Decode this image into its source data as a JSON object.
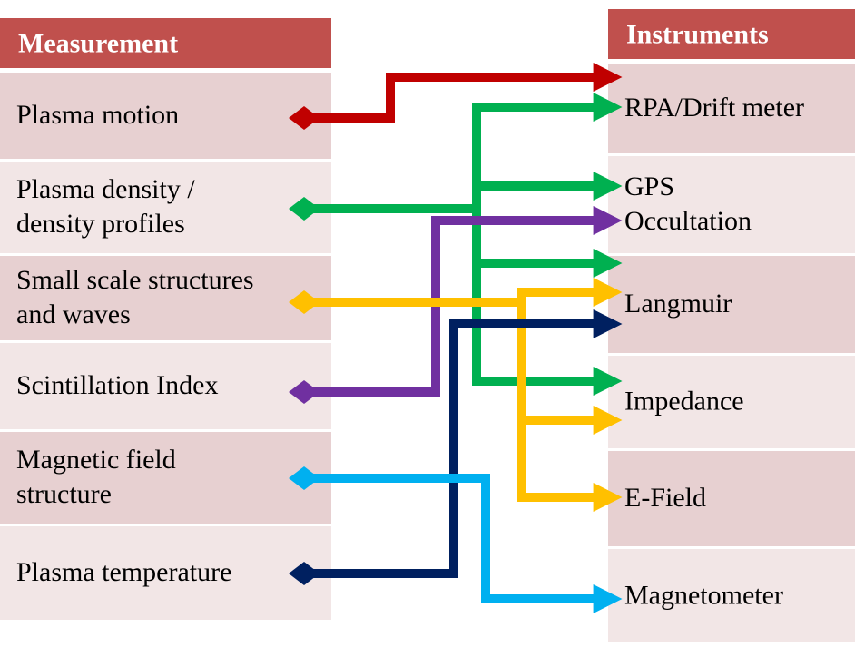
{
  "measurements": {
    "header": "Measurement",
    "rows": [
      [
        "Plasma motion"
      ],
      [
        "Plasma density /",
        "density profiles"
      ],
      [
        "Small scale structures",
        "and waves"
      ],
      [
        "Scintillation Index"
      ],
      [
        "Magnetic field",
        "structure"
      ],
      [
        "Plasma temperature"
      ]
    ]
  },
  "instruments": {
    "header": "Instruments",
    "rows": [
      [
        "RPA/Drift meter"
      ],
      [
        "GPS",
        "Occultation"
      ],
      [
        "Langmuir"
      ],
      [
        "Impedance"
      ],
      [
        "E-Field"
      ],
      [
        "Magnetometer"
      ]
    ]
  }
}
